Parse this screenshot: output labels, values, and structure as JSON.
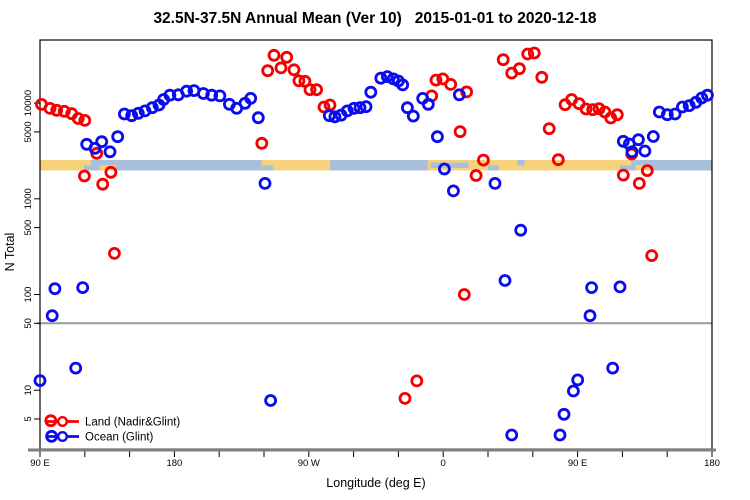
{
  "chart_data": {
    "type": "scatter",
    "title": "32.5N-37.5N Annual Mean (Ver 10)   2015-01-01 to 2020-12-18",
    "xlabel": "Longitude (deg E)",
    "ylabel": "N Total",
    "y_scale": "log",
    "y_range": [
      2.8,
      45000
    ],
    "x_axis_note": "degrees along axis, 0 = 90E wrapping eastward to 450 = 180",
    "x_range_deg": [
      0,
      450
    ],
    "x_minor_tick_step_deg": 30,
    "x_ticks": [
      {
        "d": 0,
        "label": "90 E"
      },
      {
        "d": 90,
        "label": "180"
      },
      {
        "d": 180,
        "label": "90 W"
      },
      {
        "d": 270,
        "label": "0"
      },
      {
        "d": 360,
        "label": "90 E"
      },
      {
        "d": 450,
        "label": "180"
      }
    ],
    "y_ticks": [
      5,
      10,
      50,
      100,
      500,
      1000,
      5000,
      10000
    ],
    "reference_line_value": 50,
    "grid": "off",
    "legend_position": "bottom-left",
    "colors": {
      "land": "#f50000",
      "ocean": "#0b0bf0",
      "band_land": "#f6d27c",
      "band_water": "#aabfd9",
      "reference_line": "#999999",
      "axis_heavy": "#7f7f7f"
    },
    "series": [
      {
        "name": "Land (Nadir&Glint)",
        "color": "#f50000",
        "points": [
          [
            1,
            9700
          ],
          [
            6.7,
            8800
          ],
          [
            11.2,
            8400
          ],
          [
            16.3,
            8200
          ],
          [
            21.2,
            7750
          ],
          [
            25.6,
            6900
          ],
          [
            30,
            6600
          ],
          [
            29.7,
            1730
          ],
          [
            38,
            2990
          ],
          [
            42,
            1420
          ],
          [
            47.5,
            1890
          ],
          [
            49.8,
            269
          ],
          [
            7.2,
            4.8
          ],
          [
            148.5,
            3800
          ],
          [
            152.5,
            21800
          ],
          [
            156.7,
            31600
          ],
          [
            161.4,
            23300
          ],
          [
            165.2,
            30100
          ],
          [
            170.1,
            22300
          ],
          [
            173.4,
            17100
          ],
          [
            177.4,
            16900
          ],
          [
            180.8,
            13800
          ],
          [
            185.2,
            13800
          ],
          [
            190.2,
            9100
          ],
          [
            194.2,
            9550
          ],
          [
            244.4,
            8.2
          ],
          [
            252.3,
            12.5
          ],
          [
            262.3,
            11900
          ],
          [
            265.2,
            17400
          ],
          [
            269.7,
            17900
          ],
          [
            275,
            15700
          ],
          [
            281.3,
            5020
          ],
          [
            284.1,
            100
          ],
          [
            285.7,
            13100
          ],
          [
            292,
            1750
          ],
          [
            296.9,
            2540
          ],
          [
            310.2,
            28400
          ],
          [
            315.9,
            20600
          ],
          [
            321,
            22900
          ],
          [
            326.6,
            32600
          ],
          [
            331,
            33400
          ],
          [
            336,
            18600
          ],
          [
            341,
            5400
          ],
          [
            347.1,
            2560
          ],
          [
            351.6,
            9630
          ],
          [
            356,
            10900
          ],
          [
            361,
            9860
          ],
          [
            365.6,
            8670
          ],
          [
            370.1,
            8530
          ],
          [
            374.3,
            8730
          ],
          [
            378.3,
            8070
          ],
          [
            382.2,
            6980
          ],
          [
            386.6,
            7570
          ],
          [
            390.6,
            1770
          ],
          [
            396.2,
            2940
          ],
          [
            401.3,
            1450
          ],
          [
            406.7,
            1970
          ],
          [
            409.6,
            255
          ]
        ]
      },
      {
        "name": "Ocean (Glint)",
        "color": "#0b0bf0",
        "points": [
          [
            0,
            12.6
          ],
          [
            7.8,
            3.3
          ],
          [
            8.2,
            60
          ],
          [
            10,
            115
          ],
          [
            23.9,
            17
          ],
          [
            28.6,
            118
          ],
          [
            31.3,
            3710
          ],
          [
            36.8,
            3370
          ],
          [
            41.3,
            3950
          ],
          [
            46.9,
            3100
          ],
          [
            52,
            4460
          ],
          [
            56.5,
            7690
          ],
          [
            61.4,
            7380
          ],
          [
            65.8,
            7830
          ],
          [
            70.3,
            8280
          ],
          [
            75.2,
            8960
          ],
          [
            79.7,
            9550
          ],
          [
            82.8,
            10900
          ],
          [
            87,
            12100
          ],
          [
            92.6,
            12200
          ],
          [
            98.2,
            13300
          ],
          [
            103.1,
            13500
          ],
          [
            109.4,
            12600
          ],
          [
            115,
            12100
          ],
          [
            120.5,
            11900
          ],
          [
            126.8,
            9720
          ],
          [
            131.7,
            8830
          ],
          [
            137.3,
            9950
          ],
          [
            141.1,
            11200
          ],
          [
            146.2,
            7040
          ],
          [
            150.7,
            1450
          ],
          [
            154.4,
            7.8
          ],
          [
            193.7,
            7380
          ],
          [
            197.5,
            7200
          ],
          [
            201.6,
            7470
          ],
          [
            205.8,
            8280
          ],
          [
            210.3,
            8830
          ],
          [
            214.3,
            8960
          ],
          [
            218.3,
            9170
          ],
          [
            221.5,
            13000
          ],
          [
            228.2,
            18200
          ],
          [
            232.6,
            18900
          ],
          [
            236.6,
            17900
          ],
          [
            240,
            17000
          ],
          [
            242.9,
            15500
          ],
          [
            246,
            8960
          ],
          [
            250,
            7310
          ],
          [
            256.3,
            11200
          ],
          [
            260,
            9720
          ],
          [
            266.1,
            4460
          ],
          [
            270.8,
            2050
          ],
          [
            276.8,
            1210
          ],
          [
            280.8,
            12200
          ],
          [
            304.7,
            1450
          ],
          [
            311.4,
            140
          ],
          [
            315.9,
            3.4
          ],
          [
            321.9,
            470
          ],
          [
            348.2,
            3.4
          ],
          [
            350.9,
            5.6
          ],
          [
            357.2,
            9.8
          ],
          [
            360.1,
            12.8
          ],
          [
            368.3,
            60
          ],
          [
            369.4,
            118
          ],
          [
            383.5,
            17
          ],
          [
            388.4,
            120
          ],
          [
            390.6,
            3990
          ],
          [
            394.6,
            3740
          ],
          [
            396.4,
            3100
          ],
          [
            400.7,
            4150
          ],
          [
            405.1,
            3160
          ],
          [
            410.7,
            4480
          ],
          [
            414.7,
            8070
          ],
          [
            420.1,
            7570
          ],
          [
            425.3,
            7690
          ],
          [
            430.2,
            9100
          ],
          [
            434.7,
            9400
          ],
          [
            439.2,
            10200
          ],
          [
            443.1,
            11300
          ],
          [
            446.9,
            12100
          ]
        ]
      }
    ],
    "surface_band": {
      "description": "land/ocean map strip of the 32.5N-37.5N latitude belt",
      "water_color": "#aabfd9",
      "land_color": "#f6d27c",
      "land_segments": [
        {
          "from": 0,
          "to": 29.5,
          "part": "full"
        },
        {
          "from": 29.5,
          "to": 34,
          "part": "top"
        },
        {
          "from": 40,
          "to": 51,
          "part": "bottom"
        },
        {
          "from": 148.5,
          "to": 194.2,
          "part": "full"
        },
        {
          "from": 259.8,
          "to": 309.4,
          "part": "full"
        },
        {
          "from": 309.4,
          "to": 388.4,
          "part": "full"
        },
        {
          "from": 388.4,
          "to": 396,
          "part": "top"
        },
        {
          "from": 399,
          "to": 408,
          "part": "bottom"
        }
      ],
      "water_insets": [
        {
          "from": 149,
          "to": 156,
          "part": "bottom"
        },
        {
          "from": 261.5,
          "to": 287,
          "part": "middle"
        },
        {
          "from": 300,
          "to": 307,
          "part": "bottom"
        },
        {
          "from": 319.5,
          "to": 324.5,
          "part": "top"
        }
      ]
    }
  }
}
